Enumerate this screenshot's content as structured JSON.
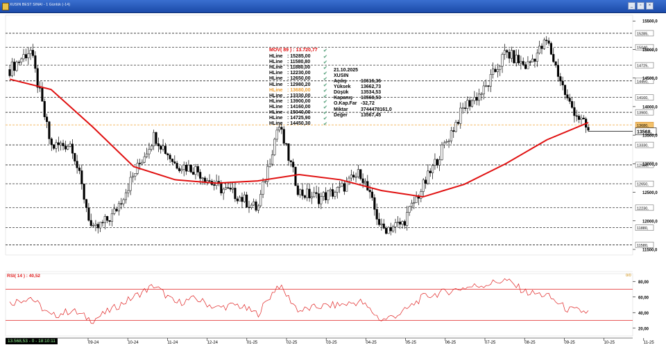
{
  "window": {
    "title": "XUSIN BEST SINAI - 1 Günlük (-14)",
    "buttons": [
      "min",
      "restore",
      "close"
    ]
  },
  "price_panel": {
    "mov_label": "MOV( 89 ) : 13.720,77",
    "hlines": [
      {
        "label": "HLine",
        "value": ": 15285,00"
      },
      {
        "label": "HLine",
        "value": ": 11580,80"
      },
      {
        "label": "HLine",
        "value": ": 11880,00"
      },
      {
        "label": "HLine",
        "value": ": 12230,00"
      },
      {
        "label": "HLine",
        "value": ": 12650,00"
      },
      {
        "label": "HLine",
        "value": ": 12980,20"
      },
      {
        "label": "HLine",
        "value": ": 13680,00",
        "highlight": true
      },
      {
        "label": "HLine",
        "value": ": 13330,00"
      },
      {
        "label": "HLine",
        "value": ": 13900,00"
      },
      {
        "label": "HLine",
        "value": ": 14160,00"
      },
      {
        "label": "HLine",
        "value": ": 15040,00"
      },
      {
        "label": "HLine",
        "value": ": 14725,90"
      },
      {
        "label": "HLine",
        "value": ": 14450,30"
      }
    ],
    "info": {
      "date": "21.10.2025",
      "symbol": "XUSIN",
      "rows": [
        {
          "k": "Açılış",
          "v": "13616,36"
        },
        {
          "k": "Yüksek",
          "v": "13662,73"
        },
        {
          "k": "Düşük",
          "v": "13534,53"
        },
        {
          "k": "Kapanış",
          "v": "13568,53"
        },
        {
          "k": "O.Kap.Far",
          "v": "-32,72"
        },
        {
          "k": "Miktar",
          "v": "3744478161,0"
        },
        {
          "k": "Değer",
          "v": "13567,45"
        }
      ]
    },
    "last_price_tag": "13568,",
    "hline_tags": [
      "15285,",
      "15040,",
      "14725,",
      "14450,",
      "14160,",
      "13900,",
      "13680,",
      "13330,",
      "12980,",
      "12650,",
      "12230,",
      "11880,",
      "11580,"
    ],
    "axis_ticks": [
      "15500,0",
      "15000,0",
      "14500,0",
      "14000,0",
      "13500,0",
      "13000,0",
      "12500,0",
      "12000,0",
      "11500,0"
    ]
  },
  "rsi_panel": {
    "label": "RSI( 14 ) : 40,52",
    "axis_ticks": [
      "80,00",
      "60,00",
      "40,00",
      "20,00"
    ],
    "corner": "0/0"
  },
  "x_axis": {
    "labels": [
      "09-24",
      "10-24",
      "11-24",
      "12-24",
      "01-25",
      "02-25",
      "03-25",
      "04-25",
      "05-25",
      "06-25",
      "07-25",
      "08-25",
      "09-25",
      "10-25",
      "11-25"
    ]
  },
  "status": {
    "text": "13.568,53 - 0 - 18:10:11"
  },
  "colors": {
    "ma": "#e01010",
    "rsi": "#e02020",
    "candle_up": "#ffffff",
    "candle_down": "#000000",
    "hline_orange": "#f0a030"
  },
  "chart_data": [
    {
      "type": "candlestick",
      "title": "XUSIN BEST SINAI - 1 Günlük",
      "y_scale": "price",
      "ylim": [
        11500,
        15600
      ],
      "x_range": [
        "09-24",
        "11-25"
      ],
      "hlines": [
        15285,
        15040,
        14725.9,
        14450.3,
        14160,
        13900,
        13680,
        13330,
        12980.2,
        12650,
        12230,
        11880,
        11580.8
      ],
      "hline_highlighted": 13680,
      "moving_average": {
        "name": "MOV( 89 )",
        "last": 13720.77,
        "points": [
          {
            "x": "09-24",
            "y": 14480
          },
          {
            "x": "10-24",
            "y": 14300
          },
          {
            "x": "11-24",
            "y": 13650
          },
          {
            "x": "12-24",
            "y": 12950
          },
          {
            "x": "01-25",
            "y": 12720
          },
          {
            "x": "02-25",
            "y": 12660
          },
          {
            "x": "03-25",
            "y": 12700
          },
          {
            "x": "04-25",
            "y": 12810
          },
          {
            "x": "05-25",
            "y": 12720
          },
          {
            "x": "06-25",
            "y": 12530
          },
          {
            "x": "07-25",
            "y": 12420
          },
          {
            "x": "08-25",
            "y": 12640
          },
          {
            "x": "09-25",
            "y": 13000
          },
          {
            "x": "10-25",
            "y": 13420
          },
          {
            "x": "10-25 end",
            "y": 13720.77
          }
        ]
      },
      "close_path": [
        {
          "x": "09-24",
          "y": 14650
        },
        {
          "x": "09-24b",
          "y": 15000
        },
        {
          "x": "10-24",
          "y": 13300
        },
        {
          "x": "10-24b",
          "y": 13350
        },
        {
          "x": "11-24",
          "y": 11800
        },
        {
          "x": "11-24b",
          "y": 12100
        },
        {
          "x": "12-24",
          "y": 12800
        },
        {
          "x": "12-24b",
          "y": 13500
        },
        {
          "x": "01-25",
          "y": 13000
        },
        {
          "x": "01-25b",
          "y": 12900
        },
        {
          "x": "02-25",
          "y": 12600
        },
        {
          "x": "02-25b",
          "y": 12450
        },
        {
          "x": "03-25",
          "y": 12200
        },
        {
          "x": "03-25b",
          "y": 13700
        },
        {
          "x": "04-25",
          "y": 12500
        },
        {
          "x": "04-25b",
          "y": 12400
        },
        {
          "x": "05-25",
          "y": 12550
        },
        {
          "x": "05-25b",
          "y": 12850
        },
        {
          "x": "06-25",
          "y": 11850
        },
        {
          "x": "06-25b",
          "y": 11950
        },
        {
          "x": "07-25",
          "y": 12600
        },
        {
          "x": "07-25b",
          "y": 13300
        },
        {
          "x": "08-25",
          "y": 14000
        },
        {
          "x": "08-25b",
          "y": 14300
        },
        {
          "x": "09-25",
          "y": 14950
        },
        {
          "x": "09-25b",
          "y": 14700
        },
        {
          "x": "10-25",
          "y": 15150
        },
        {
          "x": "10-25b",
          "y": 14100
        },
        {
          "x": "10-25 end",
          "y": 13568.53
        }
      ],
      "last": {
        "date": "21.10.2025",
        "open": 13616.36,
        "high": 13662.73,
        "low": 13534.53,
        "close": 13568.53
      }
    },
    {
      "type": "line",
      "title": "RSI( 14 )",
      "ylim": [
        10,
        90
      ],
      "levels": [
        70,
        30
      ],
      "last": 40.52,
      "points": [
        {
          "x": "09-24",
          "y": 52
        },
        {
          "x": "09-24b",
          "y": 60
        },
        {
          "x": "10-24",
          "y": 35
        },
        {
          "x": "10-24b",
          "y": 43
        },
        {
          "x": "11-24",
          "y": 30
        },
        {
          "x": "11-24b",
          "y": 45
        },
        {
          "x": "12-24",
          "y": 60
        },
        {
          "x": "12-24b",
          "y": 75
        },
        {
          "x": "01-25",
          "y": 52
        },
        {
          "x": "01-25b",
          "y": 58
        },
        {
          "x": "02-25",
          "y": 46
        },
        {
          "x": "02-25b",
          "y": 50
        },
        {
          "x": "03-25",
          "y": 38
        },
        {
          "x": "03-25b",
          "y": 76
        },
        {
          "x": "04-25",
          "y": 42
        },
        {
          "x": "04-25b",
          "y": 48
        },
        {
          "x": "05-25",
          "y": 50
        },
        {
          "x": "05-25b",
          "y": 54
        },
        {
          "x": "06-25",
          "y": 30
        },
        {
          "x": "06-25b",
          "y": 40
        },
        {
          "x": "07-25",
          "y": 60
        },
        {
          "x": "07-25b",
          "y": 66
        },
        {
          "x": "08-25",
          "y": 72
        },
        {
          "x": "08-25b",
          "y": 76
        },
        {
          "x": "09-25",
          "y": 82
        },
        {
          "x": "09-25b",
          "y": 66
        },
        {
          "x": "10-25",
          "y": 62
        },
        {
          "x": "10-25b",
          "y": 44
        },
        {
          "x": "10-25 end",
          "y": 40.52
        }
      ]
    }
  ]
}
